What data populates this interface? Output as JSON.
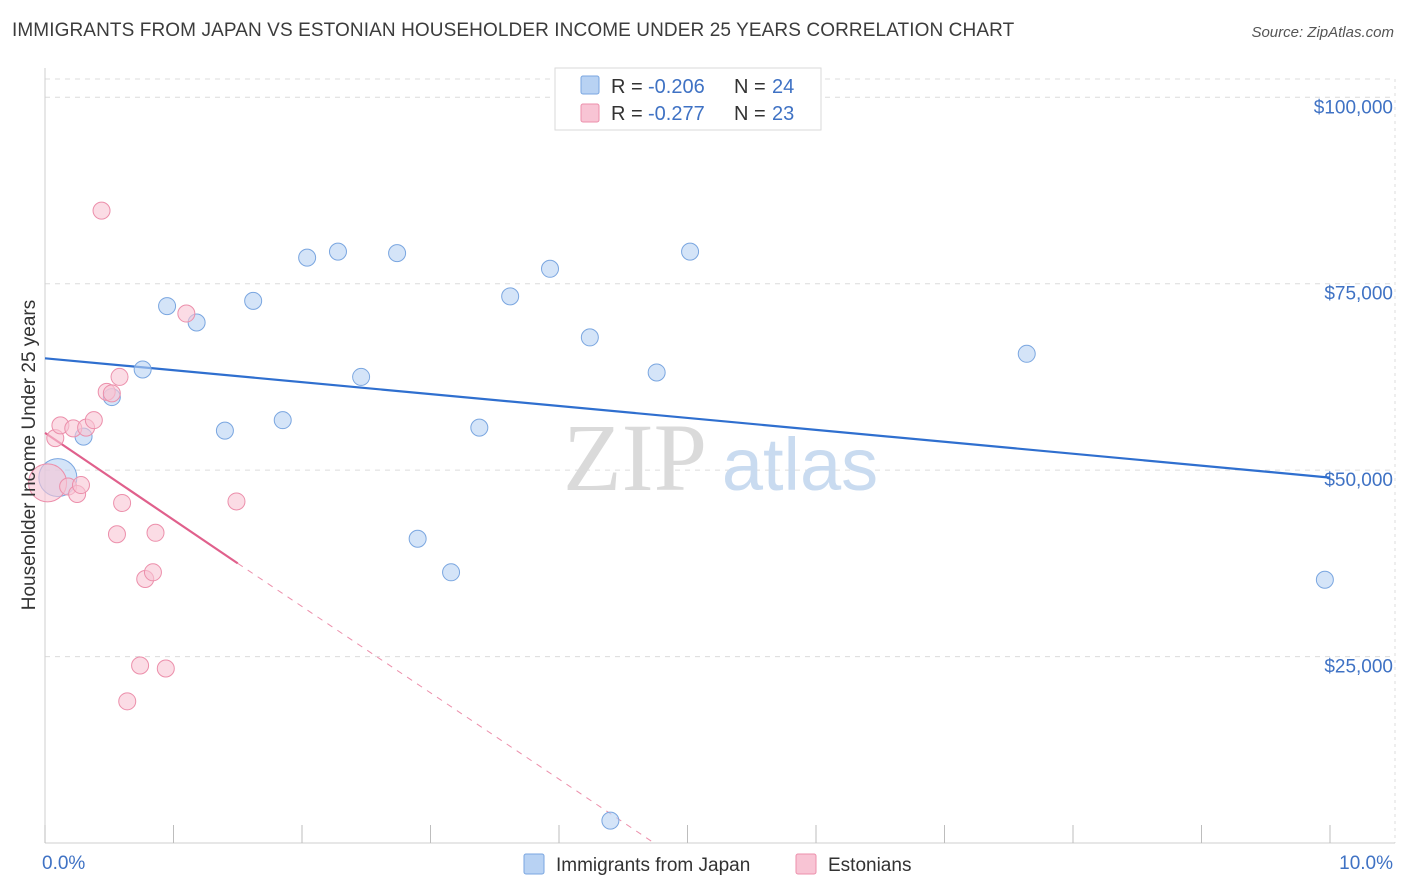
{
  "header": {
    "title": "IMMIGRANTS FROM JAPAN VS ESTONIAN HOUSEHOLDER INCOME UNDER 25 YEARS CORRELATION CHART",
    "source": "Source: ZipAtlas.com"
  },
  "colors": {
    "japan_fill": "#b8d2f3",
    "japan_stroke": "#7aa6e0",
    "japan_line": "#2f6fcf",
    "estonian_fill": "#f8c4d4",
    "estonian_stroke": "#ec8fab",
    "estonian_line": "#e0608c",
    "grid": "#dcdcdc",
    "tick_label": "#3f72c4",
    "watermark_zip": "#dadada",
    "watermark_atlas": "#c9dbf0"
  },
  "watermark": {
    "zip": "ZIP",
    "atlas": "atlas"
  },
  "chart_data": {
    "type": "scatter",
    "title": "IMMIGRANTS FROM JAPAN VS ESTONIAN HOUSEHOLDER INCOME UNDER 25 YEARS CORRELATION CHART",
    "xlabel": "",
    "ylabel": "Householder Income Under 25 years",
    "xlim": [
      0,
      10
    ],
    "ylim": [
      0,
      105000
    ],
    "x_tick_labels": [
      "0.0%",
      "10.0%"
    ],
    "y_ticks": [
      25000,
      50000,
      75000,
      100000
    ],
    "y_tick_labels": [
      "$25,000",
      "$50,000",
      "$75,000",
      "$100,000"
    ],
    "grid": true,
    "legend_position": "top-center",
    "legend": [
      {
        "r_label": "R =",
        "r_value": "-0.206",
        "n_label": "N =",
        "n_value": "24"
      },
      {
        "r_label": "R =",
        "r_value": "-0.277",
        "n_label": "N =",
        "n_value": "23"
      }
    ],
    "series": [
      {
        "name": "Immigrants from Japan",
        "points": [
          {
            "x": 0.1,
            "y": 49000,
            "large": true
          },
          {
            "x": 0.3,
            "y": 54500
          },
          {
            "x": 0.52,
            "y": 59800
          },
          {
            "x": 0.76,
            "y": 63500
          },
          {
            "x": 0.95,
            "y": 72000
          },
          {
            "x": 1.18,
            "y": 69800
          },
          {
            "x": 1.4,
            "y": 55300
          },
          {
            "x": 1.62,
            "y": 72700
          },
          {
            "x": 1.85,
            "y": 56700
          },
          {
            "x": 2.04,
            "y": 78500
          },
          {
            "x": 2.28,
            "y": 79300
          },
          {
            "x": 2.46,
            "y": 62500
          },
          {
            "x": 2.74,
            "y": 79100
          },
          {
            "x": 2.9,
            "y": 40800
          },
          {
            "x": 3.16,
            "y": 36300
          },
          {
            "x": 3.38,
            "y": 55700
          },
          {
            "x": 3.62,
            "y": 73300
          },
          {
            "x": 3.93,
            "y": 77000
          },
          {
            "x": 4.24,
            "y": 67800
          },
          {
            "x": 4.4,
            "y": 3000
          },
          {
            "x": 4.76,
            "y": 63100
          },
          {
            "x": 5.02,
            "y": 79300
          },
          {
            "x": 7.64,
            "y": 65600
          },
          {
            "x": 9.96,
            "y": 35300
          }
        ],
        "trend": {
          "x0": 0.0,
          "y0": 65000,
          "x1": 10.0,
          "y1": 49000
        }
      },
      {
        "name": "Estonians",
        "points": [
          {
            "x": 0.02,
            "y": 48300,
            "large": true
          },
          {
            "x": 0.08,
            "y": 54300
          },
          {
            "x": 0.12,
            "y": 56000
          },
          {
            "x": 0.18,
            "y": 47800
          },
          {
            "x": 0.22,
            "y": 55600
          },
          {
            "x": 0.25,
            "y": 46800
          },
          {
            "x": 0.28,
            "y": 48000
          },
          {
            "x": 0.32,
            "y": 55700
          },
          {
            "x": 0.38,
            "y": 56700
          },
          {
            "x": 0.44,
            "y": 84800
          },
          {
            "x": 0.48,
            "y": 60500
          },
          {
            "x": 0.52,
            "y": 60300
          },
          {
            "x": 0.56,
            "y": 41400
          },
          {
            "x": 0.58,
            "y": 62500
          },
          {
            "x": 0.6,
            "y": 45600
          },
          {
            "x": 0.64,
            "y": 19000
          },
          {
            "x": 0.74,
            "y": 23800
          },
          {
            "x": 0.78,
            "y": 35400
          },
          {
            "x": 0.84,
            "y": 36300
          },
          {
            "x": 0.86,
            "y": 41600
          },
          {
            "x": 0.94,
            "y": 23400
          },
          {
            "x": 1.1,
            "y": 71000
          },
          {
            "x": 1.49,
            "y": 45800
          }
        ],
        "trend": {
          "x0": 0.0,
          "y0": 55000,
          "x1": 1.5,
          "y1": 37500
        },
        "trend_extension": {
          "x0": 1.5,
          "y0": 37500,
          "x1": 4.74,
          "y1": 0
        }
      }
    ]
  }
}
